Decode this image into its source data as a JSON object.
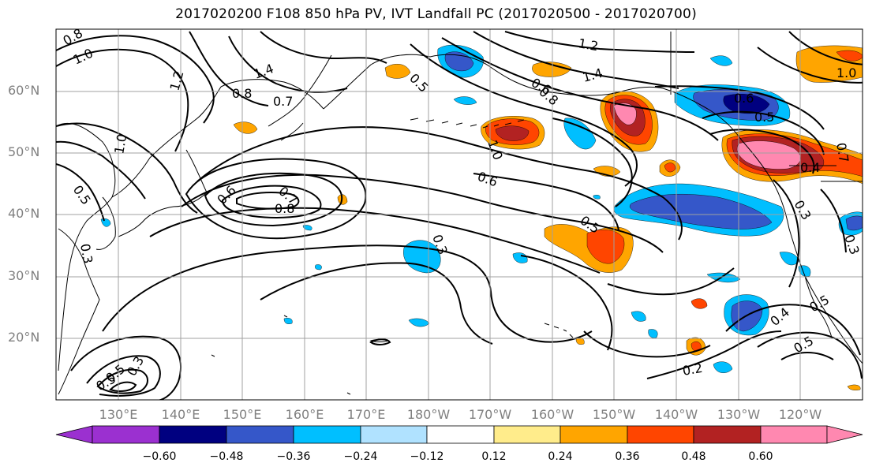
{
  "title": "2017020200 F108 850 hPa PV, IVT Landfall PC (2017020500 - 2017020700)",
  "lat_labels": [
    "60°N",
    "50°N",
    "40°N",
    "30°N",
    "20°N"
  ],
  "lon_labels": [
    "130°E",
    "140°E",
    "150°E",
    "160°E",
    "170°E",
    "180°W",
    "170°W",
    "160°W",
    "150°W",
    "140°W",
    "130°W",
    "120°W"
  ],
  "colorbar": {
    "ticks": [
      "−0.60",
      "−0.48",
      "−0.36",
      "−0.24",
      "−0.12",
      "0.12",
      "0.24",
      "0.36",
      "0.48",
      "0.60"
    ],
    "colors": [
      "#9b30d0",
      "#000080",
      "#3557c9",
      "#00bfff",
      "#b0e2ff",
      "#ffffff",
      "#ffec8b",
      "#ffa500",
      "#ff4500",
      "#b22222",
      "#ff88b0"
    ]
  },
  "contour_labels": [
    "0.8",
    "1.0",
    "1.2",
    "1.4",
    "0.8",
    "0.7",
    "1.0",
    "0.5",
    "0.6",
    "0.7",
    "0.8",
    "0.6",
    "0.5",
    "0.3",
    "0.3",
    "0.5",
    "0.2",
    "0.4",
    "0.5",
    "0.5",
    "0.3",
    "0.7",
    "0.4",
    "1.0",
    "1.2",
    "1.4",
    "0.6",
    "0.8",
    "0.5",
    "0.6",
    "1.0",
    "0.3",
    "0.3",
    "0.5",
    "0.5"
  ],
  "colors": {
    "shade_purple": "#9b30d0",
    "shade_navy": "#000080",
    "shade_royal": "#3557c9",
    "shade_sky": "#00bfff",
    "shade_light": "#b0e2ff",
    "shade_yellow": "#ffec8b",
    "shade_orange": "#ffa500",
    "shade_redorange": "#ff4500",
    "shade_darkred": "#b22222",
    "shade_pink": "#ff88b0"
  }
}
